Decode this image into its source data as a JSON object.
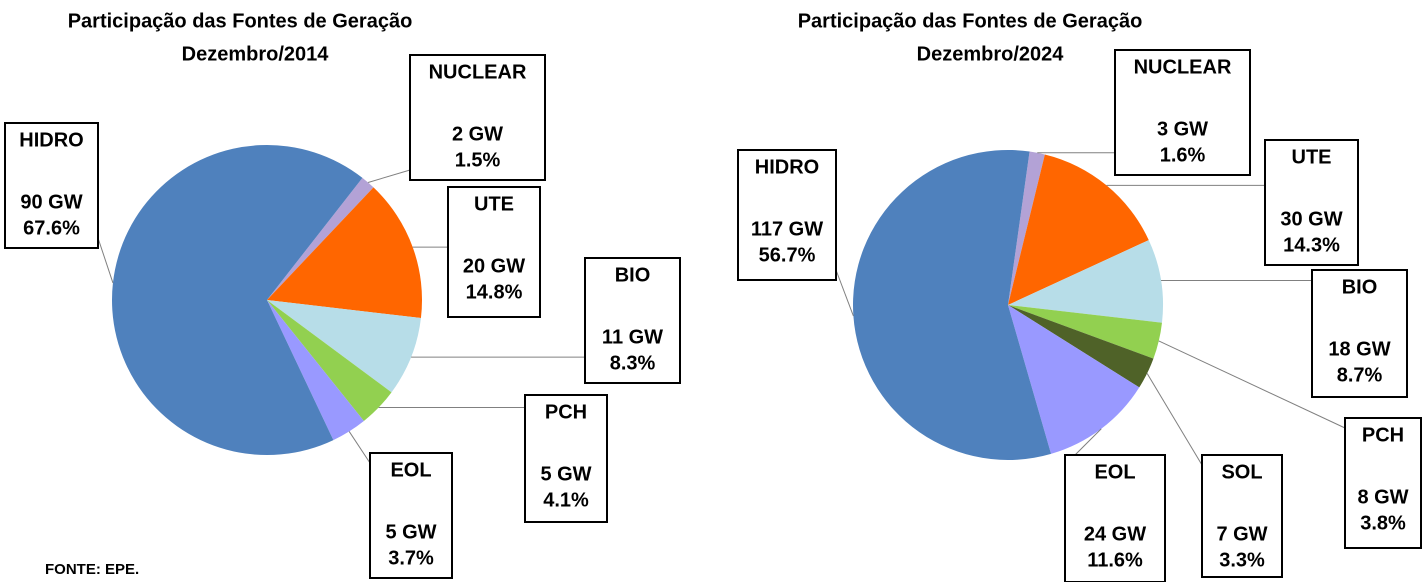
{
  "chart_data": [
    {
      "type": "pie",
      "title": "Participação das Fontes de Geração",
      "subtitle": "Dezembro/2014",
      "categories": [
        "NUCLEAR",
        "UTE",
        "BIO",
        "PCH",
        "EOL",
        "HIDRO"
      ],
      "values": [
        1.5,
        14.8,
        8.3,
        4.1,
        3.7,
        67.6
      ],
      "value_labels": [
        "1.5%",
        "14.8%",
        "8.3%",
        "4.1%",
        "3.7%",
        "67.6%"
      ],
      "capacity_values": [
        2,
        20,
        11,
        5,
        5,
        90
      ],
      "capacity_labels": [
        "2 GW",
        "20 GW",
        "11 GW",
        "5 GW",
        "5 GW",
        "90 GW"
      ],
      "colors": [
        "#b3a2d6",
        "#ff6600",
        "#b7dde8",
        "#92d050",
        "#9999ff",
        "#4f81bd"
      ]
    },
    {
      "type": "pie",
      "title": "Participação das Fontes de Geração",
      "subtitle": "Dezembro/2024",
      "categories": [
        "NUCLEAR",
        "UTE",
        "BIO",
        "PCH",
        "SOL",
        "EOL",
        "HIDRO"
      ],
      "values": [
        1.6,
        14.3,
        8.7,
        3.8,
        3.3,
        11.6,
        56.7
      ],
      "value_labels": [
        "1.6%",
        "14.3%",
        "8.7%",
        "3.8%",
        "3.3%",
        "11.6%",
        "56.7%"
      ],
      "capacity_values": [
        3,
        30,
        18,
        8,
        7,
        24,
        117
      ],
      "capacity_labels": [
        "3 GW",
        "30 GW",
        "18 GW",
        "8 GW",
        "7 GW",
        "24 GW",
        "117 GW"
      ],
      "colors": [
        "#b3a2d6",
        "#ff6600",
        "#b7dde8",
        "#92d050",
        "#4f6228",
        "#9999ff",
        "#4f81bd"
      ]
    }
  ],
  "source": "FONTE: EPE."
}
